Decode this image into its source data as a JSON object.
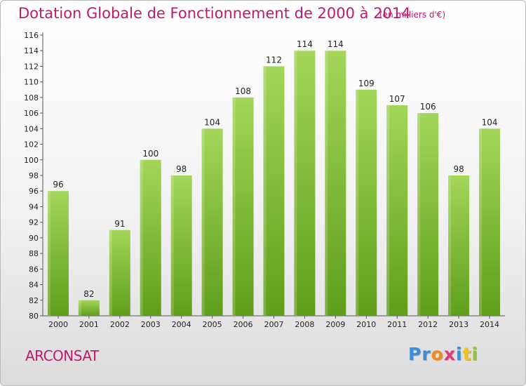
{
  "chart_data": {
    "type": "bar",
    "title": "Dotation Globale de Fonctionnement de 2000 à 2014",
    "subtitle": "(en milliers d'€)",
    "categories": [
      "2000",
      "2001",
      "2002",
      "2003",
      "2004",
      "2005",
      "2006",
      "2007",
      "2008",
      "2009",
      "2010",
      "2011",
      "2012",
      "2013",
      "2014"
    ],
    "values": [
      96,
      82,
      91,
      100,
      98,
      104,
      108,
      112,
      114,
      114,
      109,
      107,
      106,
      98,
      104
    ],
    "ylim": [
      80,
      116
    ],
    "ytick_step": 2,
    "grid": false,
    "bar_color_top": "#a3d65a",
    "bar_color_bottom": "#5f9e1a"
  },
  "footer": {
    "commune": "ARCONSAT",
    "logo_letters": [
      "P",
      "r",
      "o",
      "x",
      "i",
      "t",
      "i"
    ],
    "logo_colors": [
      "#3a8fd6",
      "#3a8fd6",
      "#f08a1c",
      "#e23a7a",
      "#3a8fd6",
      "#f0c419",
      "#8cc63f"
    ]
  }
}
